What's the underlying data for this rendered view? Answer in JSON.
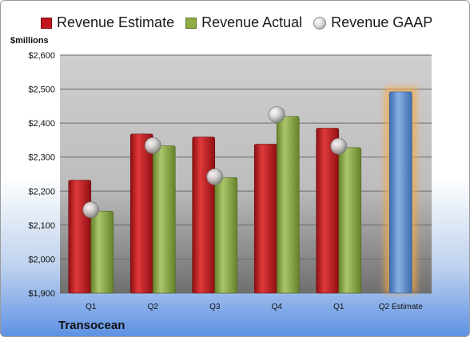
{
  "legend": {
    "estimate_label": "Revenue Estimate",
    "actual_label": "Revenue Actual",
    "gaap_label": "Revenue GAAP"
  },
  "units_label": "$millions",
  "company_name": "Transocean",
  "colors": {
    "estimate": "#c0161c",
    "actual": "#8fad43",
    "gaap": "#b4b4b4",
    "future_estimate": "#5c8fd0",
    "highlight": "#f5a94a"
  },
  "chart_data": {
    "type": "bar",
    "categories": [
      "Q1",
      "Q2",
      "Q3",
      "Q4",
      "Q1",
      "Q2 Estimate"
    ],
    "series": [
      {
        "name": "Revenue Estimate",
        "values": [
          2232,
          2368,
          2359,
          2338,
          2385,
          2492
        ]
      },
      {
        "name": "Revenue Actual",
        "values": [
          2141,
          2333,
          2240,
          2420,
          2328,
          null
        ]
      },
      {
        "name": "Revenue GAAP",
        "values": [
          2145,
          2334,
          2242,
          2425,
          2332,
          null
        ]
      }
    ],
    "ylim": [
      1900,
      2600
    ],
    "yticks": [
      1900,
      2000,
      2100,
      2200,
      2300,
      2400,
      2500,
      2600
    ],
    "ytick_labels": [
      "$1,900",
      "$2,000",
      "$2,100",
      "$2,200",
      "$2,300",
      "$2,400",
      "$2,500",
      "$2,600"
    ],
    "grid": true,
    "legend_position": "top"
  }
}
